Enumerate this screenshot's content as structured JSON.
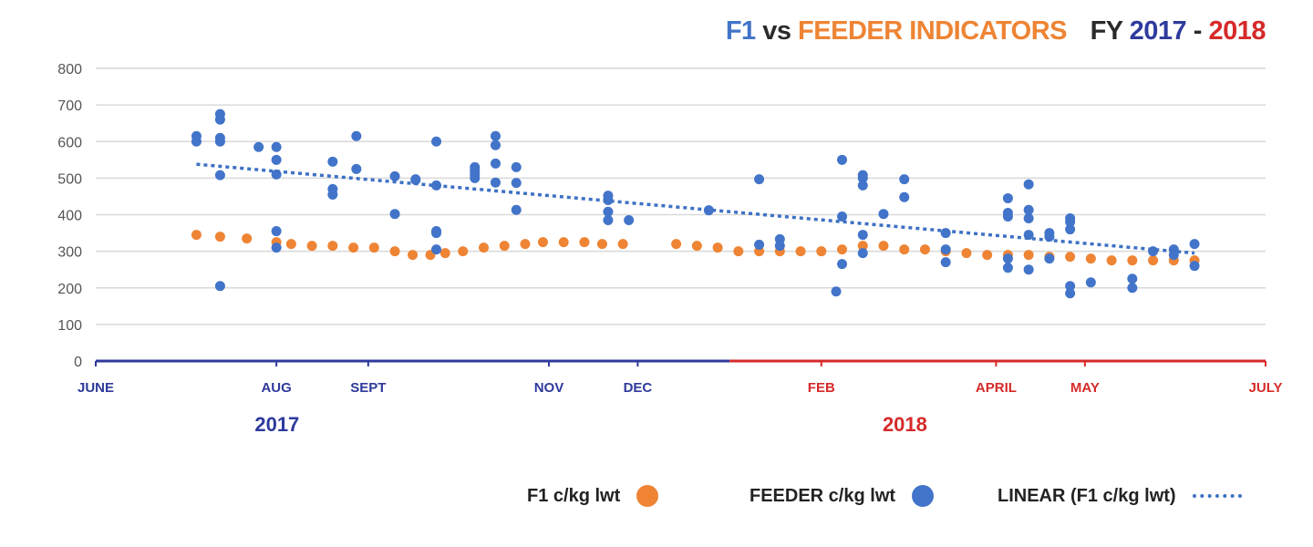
{
  "title": {
    "part1": "F1",
    "part2": "vs",
    "part3": "FEEDER INDICATORS",
    "part4": "FY",
    "part5": "2017",
    "part6": "-",
    "part7": "2018"
  },
  "colors": {
    "f1_orange": "#ee8434",
    "feeder_blue": "#4274c9",
    "trend_blue": "#3e71c4",
    "year2017": "#2e3a9c",
    "year2018": "#d62a2a",
    "axis_text": "#555555",
    "grid": "#d9d9d9"
  },
  "legend": {
    "f1_label": "F1 c/kg lwt",
    "feeder_label": "FEEDER c/kg lwt",
    "linear_label": "LINEAR (F1 c/kg lwt)"
  },
  "chart_data": {
    "type": "scatter",
    "title": "F1 vs FEEDER INDICATORS FY 2017 - 2018",
    "ylim": [
      0,
      800
    ],
    "yticks": [
      "0",
      "100",
      "200",
      "300",
      "400",
      "500",
      "600",
      "700",
      "800"
    ],
    "xlim": [
      "2017-06-01",
      "2018-07-01"
    ],
    "xticks": [
      {
        "date": "2017-06-01",
        "label": "JUNE",
        "year": "2017"
      },
      {
        "date": "2017-08-01",
        "label": "AUG",
        "year": "2017"
      },
      {
        "date": "2017-09-01",
        "label": "SEPT",
        "year": "2017"
      },
      {
        "date": "2017-11-01",
        "label": "NOV",
        "year": "2017"
      },
      {
        "date": "2017-12-01",
        "label": "DEC",
        "year": "2017"
      },
      {
        "date": "2018-02-01",
        "label": "FEB",
        "year": "2018"
      },
      {
        "date": "2018-04-01",
        "label": "APRIL",
        "year": "2018"
      },
      {
        "date": "2018-05-01",
        "label": "MAY",
        "year": "2018"
      },
      {
        "date": "2018-07-01",
        "label": "JULY",
        "year": "2018"
      }
    ],
    "year_labels": [
      {
        "label": "2017",
        "date": "2017-09-01"
      },
      {
        "label": "2018",
        "date": "2018-04-01"
      }
    ],
    "year_split": "2018-01-01",
    "grid": true,
    "legend_position": "bottom",
    "series": [
      {
        "name": "F1 c/kg lwt",
        "points": [
          [
            "2017-07-05",
            345
          ],
          [
            "2017-07-13",
            340
          ],
          [
            "2017-07-22",
            335
          ],
          [
            "2017-08-01",
            325
          ],
          [
            "2017-08-06",
            320
          ],
          [
            "2017-08-13",
            315
          ],
          [
            "2017-08-20",
            315
          ],
          [
            "2017-08-27",
            310
          ],
          [
            "2017-09-03",
            310
          ],
          [
            "2017-09-10",
            300
          ],
          [
            "2017-09-16",
            290
          ],
          [
            "2017-09-22",
            290
          ],
          [
            "2017-09-27",
            295
          ],
          [
            "2017-10-03",
            300
          ],
          [
            "2017-10-10",
            310
          ],
          [
            "2017-10-17",
            315
          ],
          [
            "2017-10-24",
            320
          ],
          [
            "2017-10-30",
            325
          ],
          [
            "2017-11-06",
            325
          ],
          [
            "2017-11-13",
            325
          ],
          [
            "2017-11-19",
            320
          ],
          [
            "2017-11-26",
            320
          ],
          [
            "2017-12-14",
            320
          ],
          [
            "2017-12-21",
            315
          ],
          [
            "2017-12-28",
            310
          ],
          [
            "2018-01-04",
            300
          ],
          [
            "2018-01-11",
            300
          ],
          [
            "2018-01-18",
            300
          ],
          [
            "2018-01-25",
            300
          ],
          [
            "2018-02-01",
            300
          ],
          [
            "2018-02-08",
            305
          ],
          [
            "2018-02-15",
            315
          ],
          [
            "2018-02-22",
            315
          ],
          [
            "2018-03-01",
            305
          ],
          [
            "2018-03-08",
            305
          ],
          [
            "2018-03-15",
            300
          ],
          [
            "2018-03-22",
            295
          ],
          [
            "2018-03-29",
            290
          ],
          [
            "2018-04-05",
            290
          ],
          [
            "2018-04-12",
            290
          ],
          [
            "2018-04-19",
            285
          ],
          [
            "2018-04-26",
            285
          ],
          [
            "2018-05-03",
            280
          ],
          [
            "2018-05-10",
            275
          ],
          [
            "2018-05-17",
            275
          ],
          [
            "2018-05-24",
            275
          ],
          [
            "2018-05-31",
            275
          ],
          [
            "2018-06-07",
            275
          ]
        ]
      },
      {
        "name": "FEEDER c/kg lwt",
        "points": [
          [
            "2017-07-05",
            615
          ],
          [
            "2017-07-05",
            600
          ],
          [
            "2017-07-13",
            675
          ],
          [
            "2017-07-13",
            660
          ],
          [
            "2017-07-13",
            610
          ],
          [
            "2017-07-13",
            600
          ],
          [
            "2017-07-13",
            508
          ],
          [
            "2017-07-13",
            205
          ],
          [
            "2017-07-26",
            585
          ],
          [
            "2017-08-01",
            585
          ],
          [
            "2017-08-01",
            550
          ],
          [
            "2017-08-01",
            510
          ],
          [
            "2017-08-01",
            355
          ],
          [
            "2017-08-01",
            310
          ],
          [
            "2017-08-20",
            545
          ],
          [
            "2017-08-20",
            470
          ],
          [
            "2017-08-20",
            455
          ],
          [
            "2017-08-28",
            615
          ],
          [
            "2017-08-28",
            525
          ],
          [
            "2017-09-10",
            505
          ],
          [
            "2017-09-10",
            402
          ],
          [
            "2017-09-17",
            497
          ],
          [
            "2017-09-17",
            495
          ],
          [
            "2017-09-24",
            600
          ],
          [
            "2017-09-24",
            480
          ],
          [
            "2017-09-24",
            355
          ],
          [
            "2017-09-24",
            350
          ],
          [
            "2017-09-24",
            305
          ],
          [
            "2017-10-07",
            530
          ],
          [
            "2017-10-07",
            520
          ],
          [
            "2017-10-07",
            510
          ],
          [
            "2017-10-07",
            500
          ],
          [
            "2017-10-14",
            615
          ],
          [
            "2017-10-14",
            590
          ],
          [
            "2017-10-14",
            540
          ],
          [
            "2017-10-14",
            488
          ],
          [
            "2017-10-21",
            530
          ],
          [
            "2017-10-21",
            487
          ],
          [
            "2017-10-21",
            413
          ],
          [
            "2017-11-21",
            452
          ],
          [
            "2017-11-21",
            440
          ],
          [
            "2017-11-21",
            408
          ],
          [
            "2017-11-21",
            385
          ],
          [
            "2017-11-28",
            385
          ],
          [
            "2017-12-25",
            412
          ],
          [
            "2018-01-11",
            497
          ],
          [
            "2018-01-11",
            318
          ],
          [
            "2018-01-18",
            333
          ],
          [
            "2018-01-18",
            315
          ],
          [
            "2018-02-06",
            190
          ],
          [
            "2018-02-08",
            550
          ],
          [
            "2018-02-08",
            395
          ],
          [
            "2018-02-08",
            265
          ],
          [
            "2018-02-15",
            508
          ],
          [
            "2018-02-15",
            500
          ],
          [
            "2018-02-15",
            480
          ],
          [
            "2018-02-15",
            345
          ],
          [
            "2018-02-15",
            295
          ],
          [
            "2018-02-22",
            402
          ],
          [
            "2018-03-01",
            497
          ],
          [
            "2018-03-01",
            448
          ],
          [
            "2018-03-15",
            350
          ],
          [
            "2018-03-15",
            305
          ],
          [
            "2018-03-15",
            270
          ],
          [
            "2018-04-05",
            445
          ],
          [
            "2018-04-05",
            405
          ],
          [
            "2018-04-05",
            395
          ],
          [
            "2018-04-05",
            280
          ],
          [
            "2018-04-05",
            255
          ],
          [
            "2018-04-12",
            483
          ],
          [
            "2018-04-12",
            413
          ],
          [
            "2018-04-12",
            390
          ],
          [
            "2018-04-12",
            345
          ],
          [
            "2018-04-12",
            250
          ],
          [
            "2018-04-19",
            350
          ],
          [
            "2018-04-19",
            340
          ],
          [
            "2018-04-19",
            280
          ],
          [
            "2018-04-26",
            390
          ],
          [
            "2018-04-26",
            380
          ],
          [
            "2018-04-26",
            360
          ],
          [
            "2018-04-26",
            205
          ],
          [
            "2018-04-26",
            185
          ],
          [
            "2018-05-03",
            215
          ],
          [
            "2018-05-17",
            225
          ],
          [
            "2018-05-17",
            200
          ],
          [
            "2018-05-24",
            300
          ],
          [
            "2018-05-31",
            305
          ],
          [
            "2018-05-31",
            290
          ],
          [
            "2018-06-07",
            320
          ],
          [
            "2018-06-07",
            260
          ]
        ]
      },
      {
        "name": "LINEAR (F1 c/kg lwt)",
        "type": "trendline",
        "points": [
          [
            "2017-07-05",
            538
          ],
          [
            "2018-06-07",
            295
          ]
        ]
      }
    ]
  }
}
